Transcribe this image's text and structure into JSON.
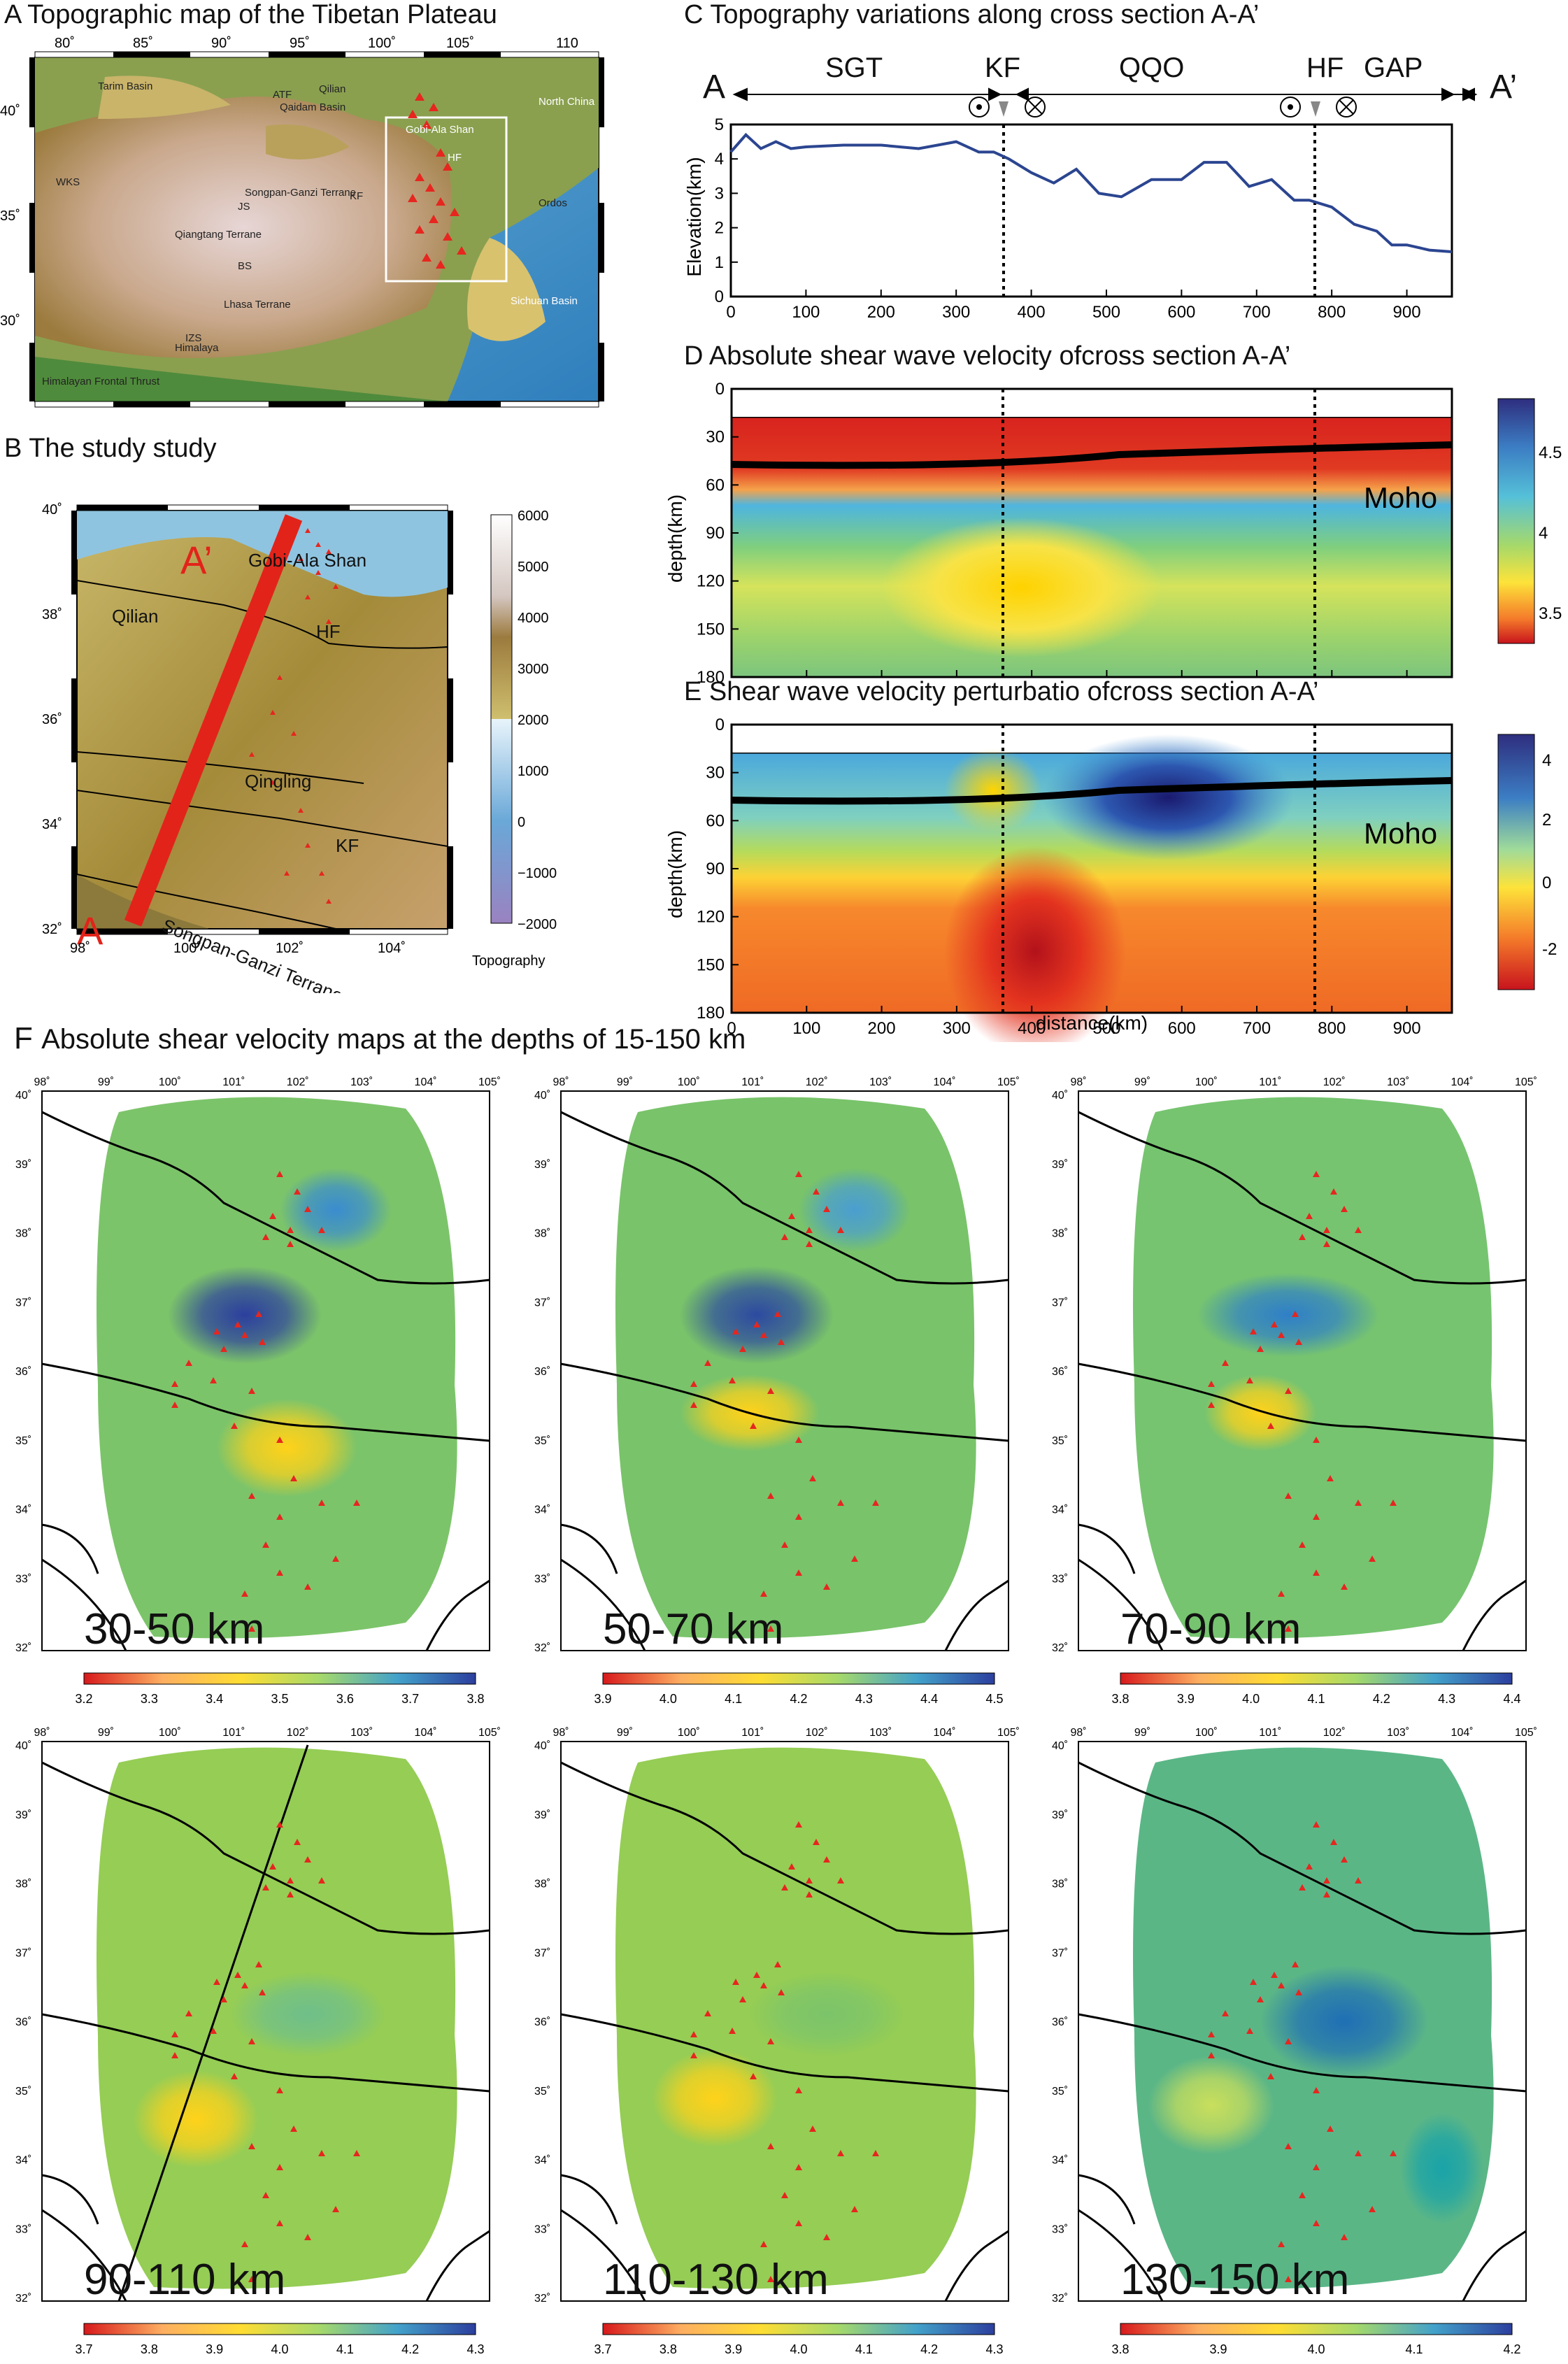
{
  "panelA": {
    "title": "A Topographic map of the Tibetan Plateau",
    "lon_ticks": [
      "80˚",
      "85˚",
      "90˚",
      "95˚",
      "100˚",
      "105˚",
      "110"
    ],
    "lat_ticks": [
      "40˚",
      "35˚",
      "30˚"
    ],
    "labels": [
      "Tarim Basin",
      "Qaidam Basin",
      "Qilian",
      "ATF",
      "Gobi-Ala Shan",
      "North China",
      "HF",
      "KF",
      "JS",
      "Songpan-Ganzi Terrane",
      "Qiangtang Terrane",
      "BS",
      "Lhasa Terrane",
      "IZS",
      "Himalaya",
      "Himalayan Frontal Thrust",
      "WKS",
      "Ordos",
      "Sichuan Basin"
    ]
  },
  "panelB": {
    "title": "B The study study",
    "lon_ticks": [
      "98˚",
      "100˚",
      "102˚",
      "104˚"
    ],
    "lat_ticks": [
      "40˚",
      "38˚",
      "36˚",
      "34˚",
      "32˚"
    ],
    "labels": {
      "a_prime": "A’",
      "a": "A",
      "gobi": "Gobi-Ala Shan",
      "qilian": "Qilian",
      "hf": "HF",
      "qingling": "Qingling",
      "kf": "KF",
      "songpan": "Songpan-Ganzi Terrane"
    },
    "colorbar_ticks": [
      "6000",
      "5000",
      "4000",
      "3000",
      "2000",
      "1000",
      "0",
      "−1000",
      "−2000"
    ],
    "colorbar_label": "Topography"
  },
  "panelC": {
    "title": "C Topography variations along cross section A-A’",
    "end_a": "A",
    "end_a_prime": "A’",
    "segments": [
      "SGT",
      "KF",
      "QQO",
      "HF",
      "GAP"
    ],
    "ylabel": "Elevation(km)",
    "yticks": [
      "5",
      "4",
      "3",
      "2",
      "1",
      "0"
    ],
    "xticks": [
      "0",
      "100",
      "200",
      "300",
      "400",
      "500",
      "600",
      "700",
      "800",
      "900"
    ],
    "chart_data": {
      "type": "line",
      "x": [
        0,
        20,
        40,
        60,
        80,
        100,
        150,
        200,
        250,
        300,
        330,
        350,
        370,
        400,
        430,
        460,
        490,
        520,
        560,
        600,
        630,
        660,
        690,
        720,
        750,
        770,
        800,
        830,
        860,
        880,
        900,
        930,
        960
      ],
      "values": [
        4.2,
        4.7,
        4.3,
        4.5,
        4.3,
        4.35,
        4.4,
        4.4,
        4.3,
        4.5,
        4.2,
        4.2,
        4.0,
        3.6,
        3.3,
        3.7,
        3.0,
        2.9,
        3.4,
        3.4,
        3.9,
        3.9,
        3.2,
        3.4,
        2.8,
        2.8,
        2.6,
        2.1,
        1.9,
        1.5,
        1.5,
        1.35,
        1.3
      ],
      "xlim": [
        0,
        960
      ],
      "ylim": [
        0,
        5
      ]
    }
  },
  "panelD": {
    "title": "D Absolute shear wave velocity ofcross section A-A’",
    "ylabel": "depth(km)",
    "yticks": [
      "0",
      "30",
      "60",
      "90",
      "120",
      "150",
      "180"
    ],
    "xticks": [
      "0",
      "100",
      "200",
      "300",
      "400",
      "500",
      "600",
      "700",
      "800",
      "900"
    ],
    "moho": "Moho",
    "colorbar_ticks": [
      "4.5",
      "4",
      "3.5"
    ]
  },
  "panelE": {
    "title": "E Shear wave velocity perturbatio ofcross section A-A’",
    "ylabel": "depth(km)",
    "xlabel": "distance(km)",
    "yticks": [
      "0",
      "30",
      "60",
      "90",
      "120",
      "150",
      "180"
    ],
    "xticks": [
      "0",
      "100",
      "200",
      "300",
      "400",
      "500",
      "600",
      "700",
      "800",
      "900"
    ],
    "moho": "Moho",
    "colorbar_ticks": [
      "4",
      "2",
      "0",
      "-2"
    ]
  },
  "panelF": {
    "title": "Absolute shear velocity maps at the depths of 15-150 km",
    "title_letter": "F",
    "lon_ticks": [
      "98˚",
      "99˚",
      "100˚",
      "101˚",
      "102˚",
      "103˚",
      "104˚",
      "105˚"
    ],
    "lat_ticks": [
      "40˚",
      "39˚",
      "38˚",
      "37˚",
      "36˚",
      "35˚",
      "34˚",
      "33˚",
      "32˚"
    ],
    "maps": [
      {
        "depth": "30-50 km",
        "cbar": [
          "3.2",
          "3.3",
          "3.4",
          "3.5",
          "3.6",
          "3.7",
          "3.8"
        ]
      },
      {
        "depth": "50-70 km",
        "cbar": [
          "3.9",
          "4.0",
          "4.1",
          "4.2",
          "4.3",
          "4.4",
          "4.5"
        ]
      },
      {
        "depth": "70-90 km",
        "cbar": [
          "3.8",
          "3.9",
          "4.0",
          "4.1",
          "4.2",
          "4.3",
          "4.4"
        ]
      },
      {
        "depth": "90-110 km",
        "cbar": [
          "3.7",
          "3.8",
          "3.9",
          "4.0",
          "4.1",
          "4.2",
          "4.3"
        ]
      },
      {
        "depth": "110-130 km",
        "cbar": [
          "3.7",
          "3.8",
          "3.9",
          "4.0",
          "4.1",
          "4.2",
          "4.3"
        ]
      },
      {
        "depth": "130-150 km",
        "cbar": [
          "3.8",
          "3.9",
          "4.0",
          "4.1",
          "4.2"
        ]
      }
    ]
  }
}
